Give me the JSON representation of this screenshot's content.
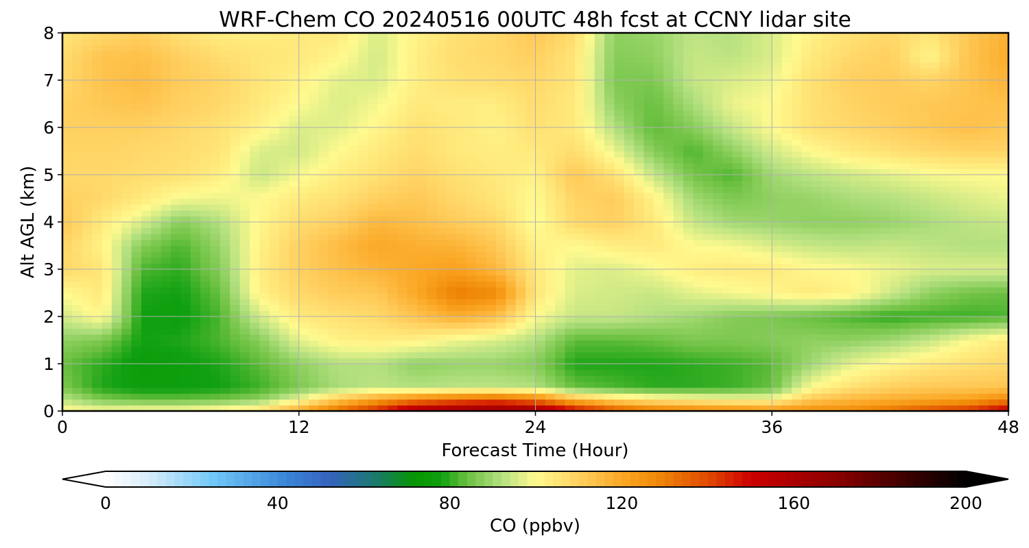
{
  "chart_data": {
    "type": "heatmap",
    "title": "WRF-Chem CO  20240516 00UTC 48h fcst at CCNY lidar site",
    "xlabel": "Forecast Time (Hour)",
    "ylabel": "Alt AGL (km)",
    "xlim": [
      0,
      48
    ],
    "ylim": [
      0,
      8
    ],
    "x_ticks": [
      0,
      12,
      24,
      36,
      48
    ],
    "y_ticks": [
      0,
      1,
      2,
      3,
      4,
      5,
      6,
      7,
      8
    ],
    "grid": true,
    "x": [
      0,
      2,
      4,
      6,
      8,
      10,
      12,
      14,
      16,
      18,
      20,
      22,
      24,
      26,
      28,
      30,
      32,
      34,
      36,
      38,
      40,
      42,
      44,
      46,
      48
    ],
    "y": [
      0,
      0.25,
      0.5,
      1,
      1.5,
      2,
      2.5,
      3,
      3.5,
      4,
      4.5,
      5,
      5.5,
      6,
      6.5,
      7,
      7.5,
      8
    ],
    "values": [
      [
        101,
        100,
        101,
        101,
        103,
        107,
        120,
        135,
        147,
        162,
        165,
        168,
        165,
        152,
        140,
        133,
        130,
        128,
        125,
        127,
        128,
        133,
        140,
        145,
        155
      ],
      [
        93,
        86,
        84,
        84,
        85,
        88,
        98,
        112,
        122,
        130,
        135,
        138,
        132,
        116,
        108,
        104,
        102,
        100,
        100,
        112,
        116,
        118,
        120,
        122,
        128
      ],
      [
        86,
        79,
        77,
        77,
        78,
        81,
        86,
        91,
        93,
        92,
        93,
        93,
        92,
        84,
        82,
        80,
        80,
        81,
        84,
        100,
        106,
        110,
        112,
        112,
        113
      ],
      [
        84,
        80,
        76,
        77,
        79,
        83,
        88,
        92,
        92,
        88,
        89,
        89,
        87,
        79,
        79,
        79,
        80,
        81,
        83,
        90,
        97,
        101,
        104,
        106,
        108
      ],
      [
        88,
        86,
        78,
        79,
        82,
        87,
        97,
        102,
        103,
        102,
        98,
        96,
        92,
        83,
        83,
        84,
        86,
        86,
        87,
        88,
        88,
        90,
        94,
        100,
        104
      ],
      [
        95,
        101,
        78,
        77,
        82,
        95,
        104,
        106,
        108,
        113,
        118,
        114,
        100,
        94,
        94,
        92,
        90,
        87,
        86,
        84,
        82,
        80,
        81,
        81,
        82
      ],
      [
        100,
        104,
        79,
        78,
        84,
        102,
        108,
        111,
        112,
        120,
        131,
        128,
        105,
        96,
        95,
        94,
        97,
        99,
        101,
        104,
        102,
        95,
        88,
        85,
        84
      ],
      [
        108,
        105,
        82,
        80,
        87,
        103,
        110,
        114,
        117,
        120,
        122,
        116,
        104,
        97,
        96,
        99,
        103,
        104,
        104,
        101,
        100,
        98,
        96,
        96,
        96
      ],
      [
        109,
        102,
        87,
        82,
        89,
        102,
        110,
        115,
        120,
        118,
        117,
        112,
        102,
        100,
        103,
        104,
        100,
        99,
        96,
        94,
        93,
        94,
        93,
        92,
        92
      ],
      [
        112,
        104,
        96,
        87,
        92,
        101,
        107,
        110,
        116,
        114,
        111,
        108,
        99,
        108,
        110,
        104,
        94,
        90,
        89,
        88,
        88,
        89,
        91,
        93,
        94
      ],
      [
        110,
        108,
        104,
        99,
        98,
        100,
        104,
        106,
        110,
        112,
        108,
        105,
        100,
        109,
        111,
        102,
        90,
        86,
        88,
        89,
        91,
        92,
        94,
        96,
        98
      ],
      [
        108,
        108,
        107,
        106,
        103,
        94,
        99,
        103,
        106,
        109,
        106,
        104,
        102,
        112,
        106,
        94,
        85,
        82,
        90,
        93,
        95,
        97,
        99,
        100,
        100
      ],
      [
        109,
        109,
        108,
        107,
        105,
        96,
        95,
        100,
        104,
        107,
        104,
        103,
        104,
        107,
        98,
        87,
        82,
        88,
        95,
        100,
        104,
        106,
        108,
        109,
        109
      ],
      [
        110,
        110,
        110,
        108,
        106,
        102,
        96,
        97,
        101,
        106,
        104,
        102,
        106,
        104,
        92,
        83,
        87,
        94,
        100,
        106,
        108,
        110,
        112,
        114,
        112
      ],
      [
        110,
        112,
        113,
        110,
        108,
        104,
        100,
        96,
        99,
        104,
        103,
        103,
        107,
        104,
        88,
        84,
        91,
        98,
        100,
        106,
        109,
        111,
        112,
        113,
        114
      ],
      [
        108,
        113,
        115,
        111,
        109,
        105,
        102,
        97,
        96,
        103,
        106,
        107,
        108,
        105,
        86,
        86,
        94,
        96,
        98,
        106,
        110,
        111,
        109,
        113,
        117
      ],
      [
        107,
        113,
        114,
        110,
        107,
        105,
        104,
        101,
        95,
        103,
        107,
        108,
        110,
        105,
        87,
        88,
        94,
        93,
        96,
        104,
        108,
        110,
        101,
        113,
        119
      ],
      [
        105,
        108,
        110,
        106,
        103,
        103,
        104,
        104,
        96,
        102,
        106,
        108,
        112,
        107,
        88,
        89,
        93,
        92,
        96,
        102,
        106,
        108,
        105,
        112,
        118
      ]
    ],
    "colorbar": {
      "label": "CO  (ppbv)",
      "vmin": 0,
      "vmax": 200,
      "ticks": [
        0,
        40,
        80,
        120,
        160,
        200
      ],
      "extend": "both",
      "colors": [
        {
          "v": 0,
          "c": "#ffffff"
        },
        {
          "v": 10,
          "c": "#d8ecfa"
        },
        {
          "v": 25,
          "c": "#70c8f8"
        },
        {
          "v": 42,
          "c": "#3a85d8"
        },
        {
          "v": 52,
          "c": "#3563bd"
        },
        {
          "v": 62,
          "c": "#1c7874"
        },
        {
          "v": 72,
          "c": "#059600"
        },
        {
          "v": 78,
          "c": "#10a010"
        },
        {
          "v": 84,
          "c": "#6ac040"
        },
        {
          "v": 92,
          "c": "#b4e080"
        },
        {
          "v": 100,
          "c": "#fffa8f"
        },
        {
          "v": 110,
          "c": "#ffd060"
        },
        {
          "v": 120,
          "c": "#fba725"
        },
        {
          "v": 128,
          "c": "#f08a08"
        },
        {
          "v": 140,
          "c": "#e04a00"
        },
        {
          "v": 150,
          "c": "#cc0000"
        },
        {
          "v": 170,
          "c": "#8a0000"
        },
        {
          "v": 185,
          "c": "#420000"
        },
        {
          "v": 200,
          "c": "#000000"
        }
      ]
    }
  }
}
